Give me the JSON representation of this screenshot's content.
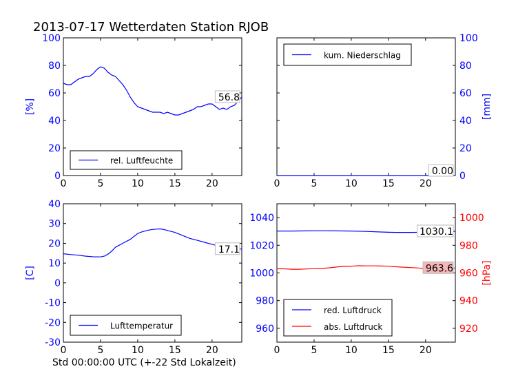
{
  "figure": {
    "title": "2013-07-17 Wetterdaten Station RJOB",
    "xlabel": "Std 00:00:00 UTC (+-22 Std Lokalzeit)"
  },
  "colors": {
    "blue": "#0000ff",
    "red": "#ff0000",
    "ann_box": "#f5b7b7"
  },
  "chart_data": [
    {
      "type": "line",
      "panel": "humidity",
      "ylabel": "[%]",
      "ylabel_color": "blue",
      "xlim": [
        0,
        24
      ],
      "ylim": [
        0,
        100
      ],
      "xticks": [
        0,
        5,
        10,
        15,
        20
      ],
      "yticks": [
        0,
        20,
        40,
        60,
        80,
        100
      ],
      "legend_loc": "lower-left",
      "annotation": "56.8",
      "series": [
        {
          "name": "rel. Luftfeuchte",
          "color": "blue",
          "x": [
            0,
            0.5,
            1,
            1.5,
            2,
            2.5,
            3,
            3.5,
            4,
            4.5,
            5,
            5.5,
            6,
            6.5,
            7,
            7.5,
            8,
            8.5,
            9,
            9.5,
            10,
            10.5,
            11,
            11.5,
            12,
            12.5,
            13,
            13.5,
            14,
            14.5,
            15,
            15.5,
            16,
            16.5,
            17,
            17.5,
            18,
            18.5,
            19,
            19.5,
            20,
            20.5,
            21,
            21.5,
            22,
            22.5,
            23,
            23.5,
            24
          ],
          "y": [
            67,
            66,
            66,
            68,
            70,
            71,
            72,
            72,
            74,
            77,
            79,
            78,
            75,
            73,
            72,
            69,
            66,
            62,
            57,
            53,
            50,
            49,
            48,
            47,
            46,
            46,
            46,
            45,
            46,
            45,
            44,
            44,
            45,
            46,
            47,
            48,
            50,
            50,
            51,
            52,
            52,
            50,
            48,
            49,
            48,
            50,
            51,
            54,
            57
          ]
        }
      ]
    },
    {
      "type": "line",
      "panel": "precipitation",
      "ylabel": "[mm]",
      "ylabel_color": "blue",
      "xlim": [
        0,
        24
      ],
      "ylim": [
        0,
        100
      ],
      "xticks": [
        0,
        5,
        10,
        15,
        20
      ],
      "yticks": [
        0,
        20,
        40,
        60,
        80,
        100
      ],
      "legend_loc": "upper-left",
      "annotation": "0.00",
      "series": [
        {
          "name": "kum. Niederschlag",
          "color": "blue",
          "x": [
            0,
            24
          ],
          "y": [
            0,
            0
          ]
        }
      ]
    },
    {
      "type": "line",
      "panel": "temperature",
      "ylabel": "[C]",
      "ylabel_color": "blue",
      "xlim": [
        0,
        24
      ],
      "ylim": [
        -30,
        40
      ],
      "xticks": [
        0,
        5,
        10,
        15,
        20
      ],
      "yticks": [
        -30,
        -20,
        -10,
        0,
        10,
        20,
        30,
        40
      ],
      "legend_loc": "lower-left",
      "annotation": "17.1",
      "series": [
        {
          "name": "Lufttemperatur",
          "color": "blue",
          "x": [
            0,
            1,
            2,
            3,
            4,
            5,
            5.5,
            6,
            6.5,
            7,
            7.5,
            8,
            9,
            10,
            10.5,
            11,
            11.5,
            12,
            12.5,
            13,
            13.5,
            14,
            15,
            16,
            17,
            18,
            19,
            20,
            21,
            22,
            23,
            24
          ],
          "y": [
            14.7,
            14.3,
            14,
            13.5,
            13.2,
            13.1,
            13.5,
            14.5,
            16,
            18,
            19,
            20,
            22,
            25,
            25.7,
            26.2,
            26.7,
            27,
            27.2,
            27.3,
            27,
            26.5,
            25.5,
            24,
            22.5,
            21.5,
            20.5,
            19.5,
            18.5,
            17.8,
            17.3,
            17.1
          ]
        }
      ]
    },
    {
      "type": "line",
      "panel": "pressure",
      "ylabel": "[hPa]",
      "ylabel_color": "red",
      "xlim": [
        0,
        24
      ],
      "ylim_left": [
        950,
        1050
      ],
      "ylim_right": [
        910,
        1010
      ],
      "xticks": [
        0,
        5,
        10,
        15,
        20
      ],
      "yticks_left": [
        960,
        980,
        1000,
        1020,
        1040
      ],
      "yticks_right": [
        920,
        940,
        960,
        980,
        1000
      ],
      "legend_loc": "lower-left",
      "annotations": [
        {
          "text": "1030.1",
          "axis": "left"
        },
        {
          "text": "963.6",
          "axis": "right"
        }
      ],
      "series": [
        {
          "name": "red. Luftdruck",
          "color": "blue",
          "axis": "left",
          "x": [
            0,
            2,
            4,
            6,
            8,
            10,
            12,
            14,
            15,
            16,
            18,
            20,
            22,
            24
          ],
          "y": [
            1030.3,
            1030.3,
            1030.4,
            1030.5,
            1030.4,
            1030.3,
            1030.0,
            1029.6,
            1029.4,
            1029.3,
            1029.3,
            1029.4,
            1029.8,
            1030.1
          ]
        },
        {
          "name": "abs. Luftdruck",
          "color": "red",
          "axis": "right",
          "x": [
            0,
            1,
            2,
            3,
            4,
            5,
            6,
            7,
            8,
            9,
            10,
            11,
            12,
            13,
            14,
            15,
            16,
            17,
            18,
            19,
            20,
            21,
            22,
            23,
            24
          ],
          "y": [
            963.0,
            963.0,
            962.7,
            962.7,
            962.9,
            963.1,
            963.3,
            963.7,
            964.3,
            964.8,
            964.9,
            965.2,
            965.1,
            965.1,
            965.0,
            964.9,
            964.5,
            964.2,
            963.9,
            963.6,
            963.2,
            963.3,
            963.5,
            963.6,
            963.6
          ]
        }
      ]
    }
  ]
}
